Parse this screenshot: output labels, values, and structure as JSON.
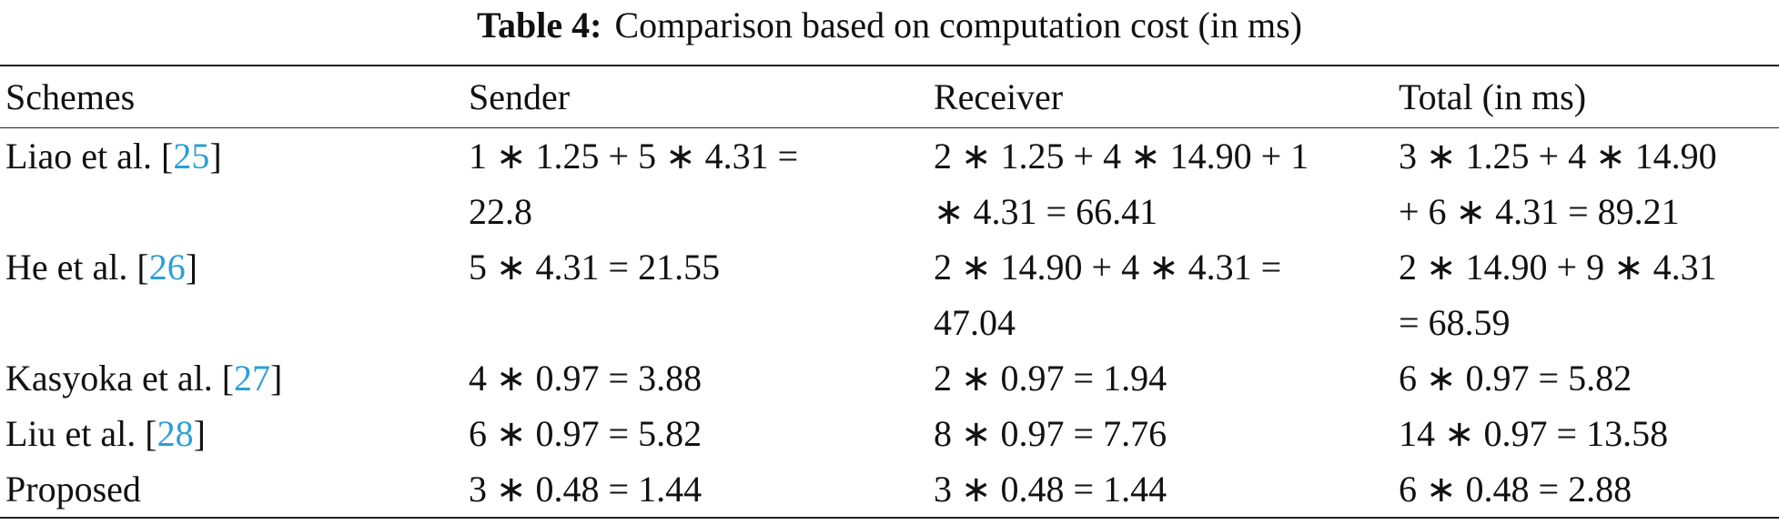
{
  "title": {
    "label": "Table 4:",
    "text": "Comparison based on computation cost (in ms)"
  },
  "table": {
    "header": [
      "Schemes",
      "Sender",
      "Receiver",
      "Total (in ms)"
    ],
    "rows": [
      [
        {
          "text": "Liao et al. [",
          "cite": "25",
          "close": "]"
        },
        [
          "1 ∗ 1.25 + 5 ∗ 4.31 =",
          "22.8"
        ],
        [
          "2 ∗ 1.25 + 4 ∗ 14.90 + 1",
          "∗ 4.31 = 66.41"
        ],
        [
          "3 ∗ 1.25 + 4 ∗ 14.90",
          "+ 6 ∗ 4.31 = 89.21"
        ]
      ],
      [
        {
          "text": "He et al. [",
          "cite": "26",
          "close": "]"
        },
        [
          "5 ∗ 4.31 = 21.55"
        ],
        [
          "2 ∗ 14.90 + 4 ∗ 4.31 =",
          "47.04"
        ],
        [
          "2 ∗ 14.90 + 9 ∗ 4.31",
          "= 68.59"
        ]
      ],
      [
        {
          "text": "Kasyoka et al. [",
          "cite": "27",
          "close": "]"
        },
        [
          "4 ∗ 0.97 = 3.88"
        ],
        [
          "2 ∗ 0.97 = 1.94"
        ],
        [
          "6 ∗ 0.97 = 5.82"
        ]
      ],
      [
        {
          "text": "Liu et al. [",
          "cite": "28",
          "close": "]"
        },
        [
          "6 ∗ 0.97 = 5.82"
        ],
        [
          "8 ∗ 0.97 = 7.76"
        ],
        [
          "14 ∗ 0.97 = 13.58"
        ]
      ],
      [
        {
          "text": "Proposed"
        },
        [
          "3 ∗ 0.48 = 1.44"
        ],
        [
          "3 ∗ 0.48 = 1.44"
        ],
        [
          "6 ∗ 0.48 = 2.88"
        ]
      ]
    ]
  }
}
